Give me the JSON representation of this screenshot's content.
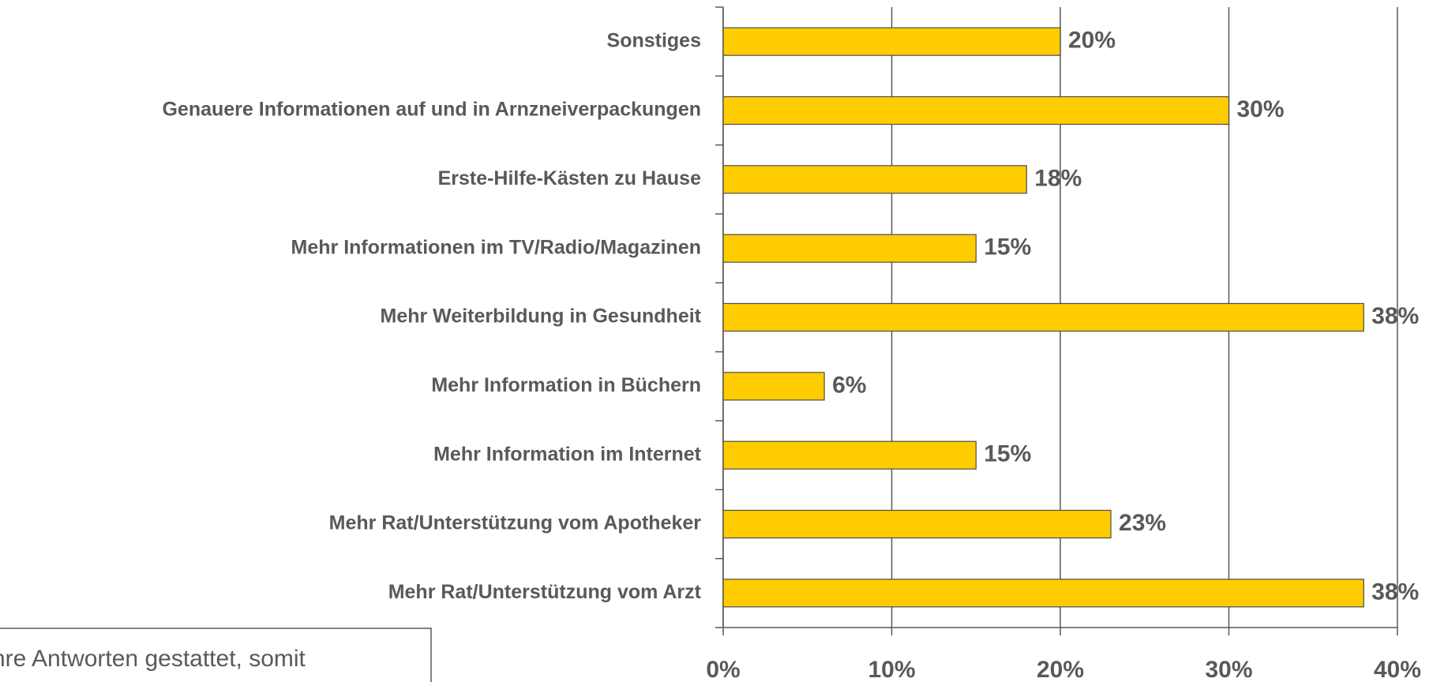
{
  "chart_data": {
    "type": "barh",
    "categories": [
      "Sonstiges",
      "Genauere Informationen auf und in Arnzneiverpackungen",
      "Erste-Hilfe-Kästen zu Hause",
      "Mehr Informationen im TV/Radio/Magazinen",
      "Mehr Weiterbildung in Gesundheit",
      "Mehr Information in Büchern",
      "Mehr Information im Internet",
      "Mehr Rat/Unterstützung vom Apotheker",
      "Mehr Rat/Unterstützung vom Arzt"
    ],
    "values": [
      20,
      30,
      18,
      15,
      38,
      6,
      15,
      23,
      38
    ],
    "value_labels": [
      "20%",
      "30%",
      "18%",
      "15%",
      "38%",
      "6%",
      "15%",
      "23%",
      "38%"
    ],
    "color": "#ffcc00",
    "xlim": [
      0,
      40
    ],
    "xticks": [
      {
        "value": 0,
        "label": "0%"
      },
      {
        "value": 10,
        "label": "10%"
      },
      {
        "value": 20,
        "label": "20%"
      },
      {
        "value": 30,
        "label": "30%"
      },
      {
        "value": 40,
        "label": "40%"
      }
    ],
    "grid": true,
    "note": "hre Antworten gestattet, somit"
  }
}
